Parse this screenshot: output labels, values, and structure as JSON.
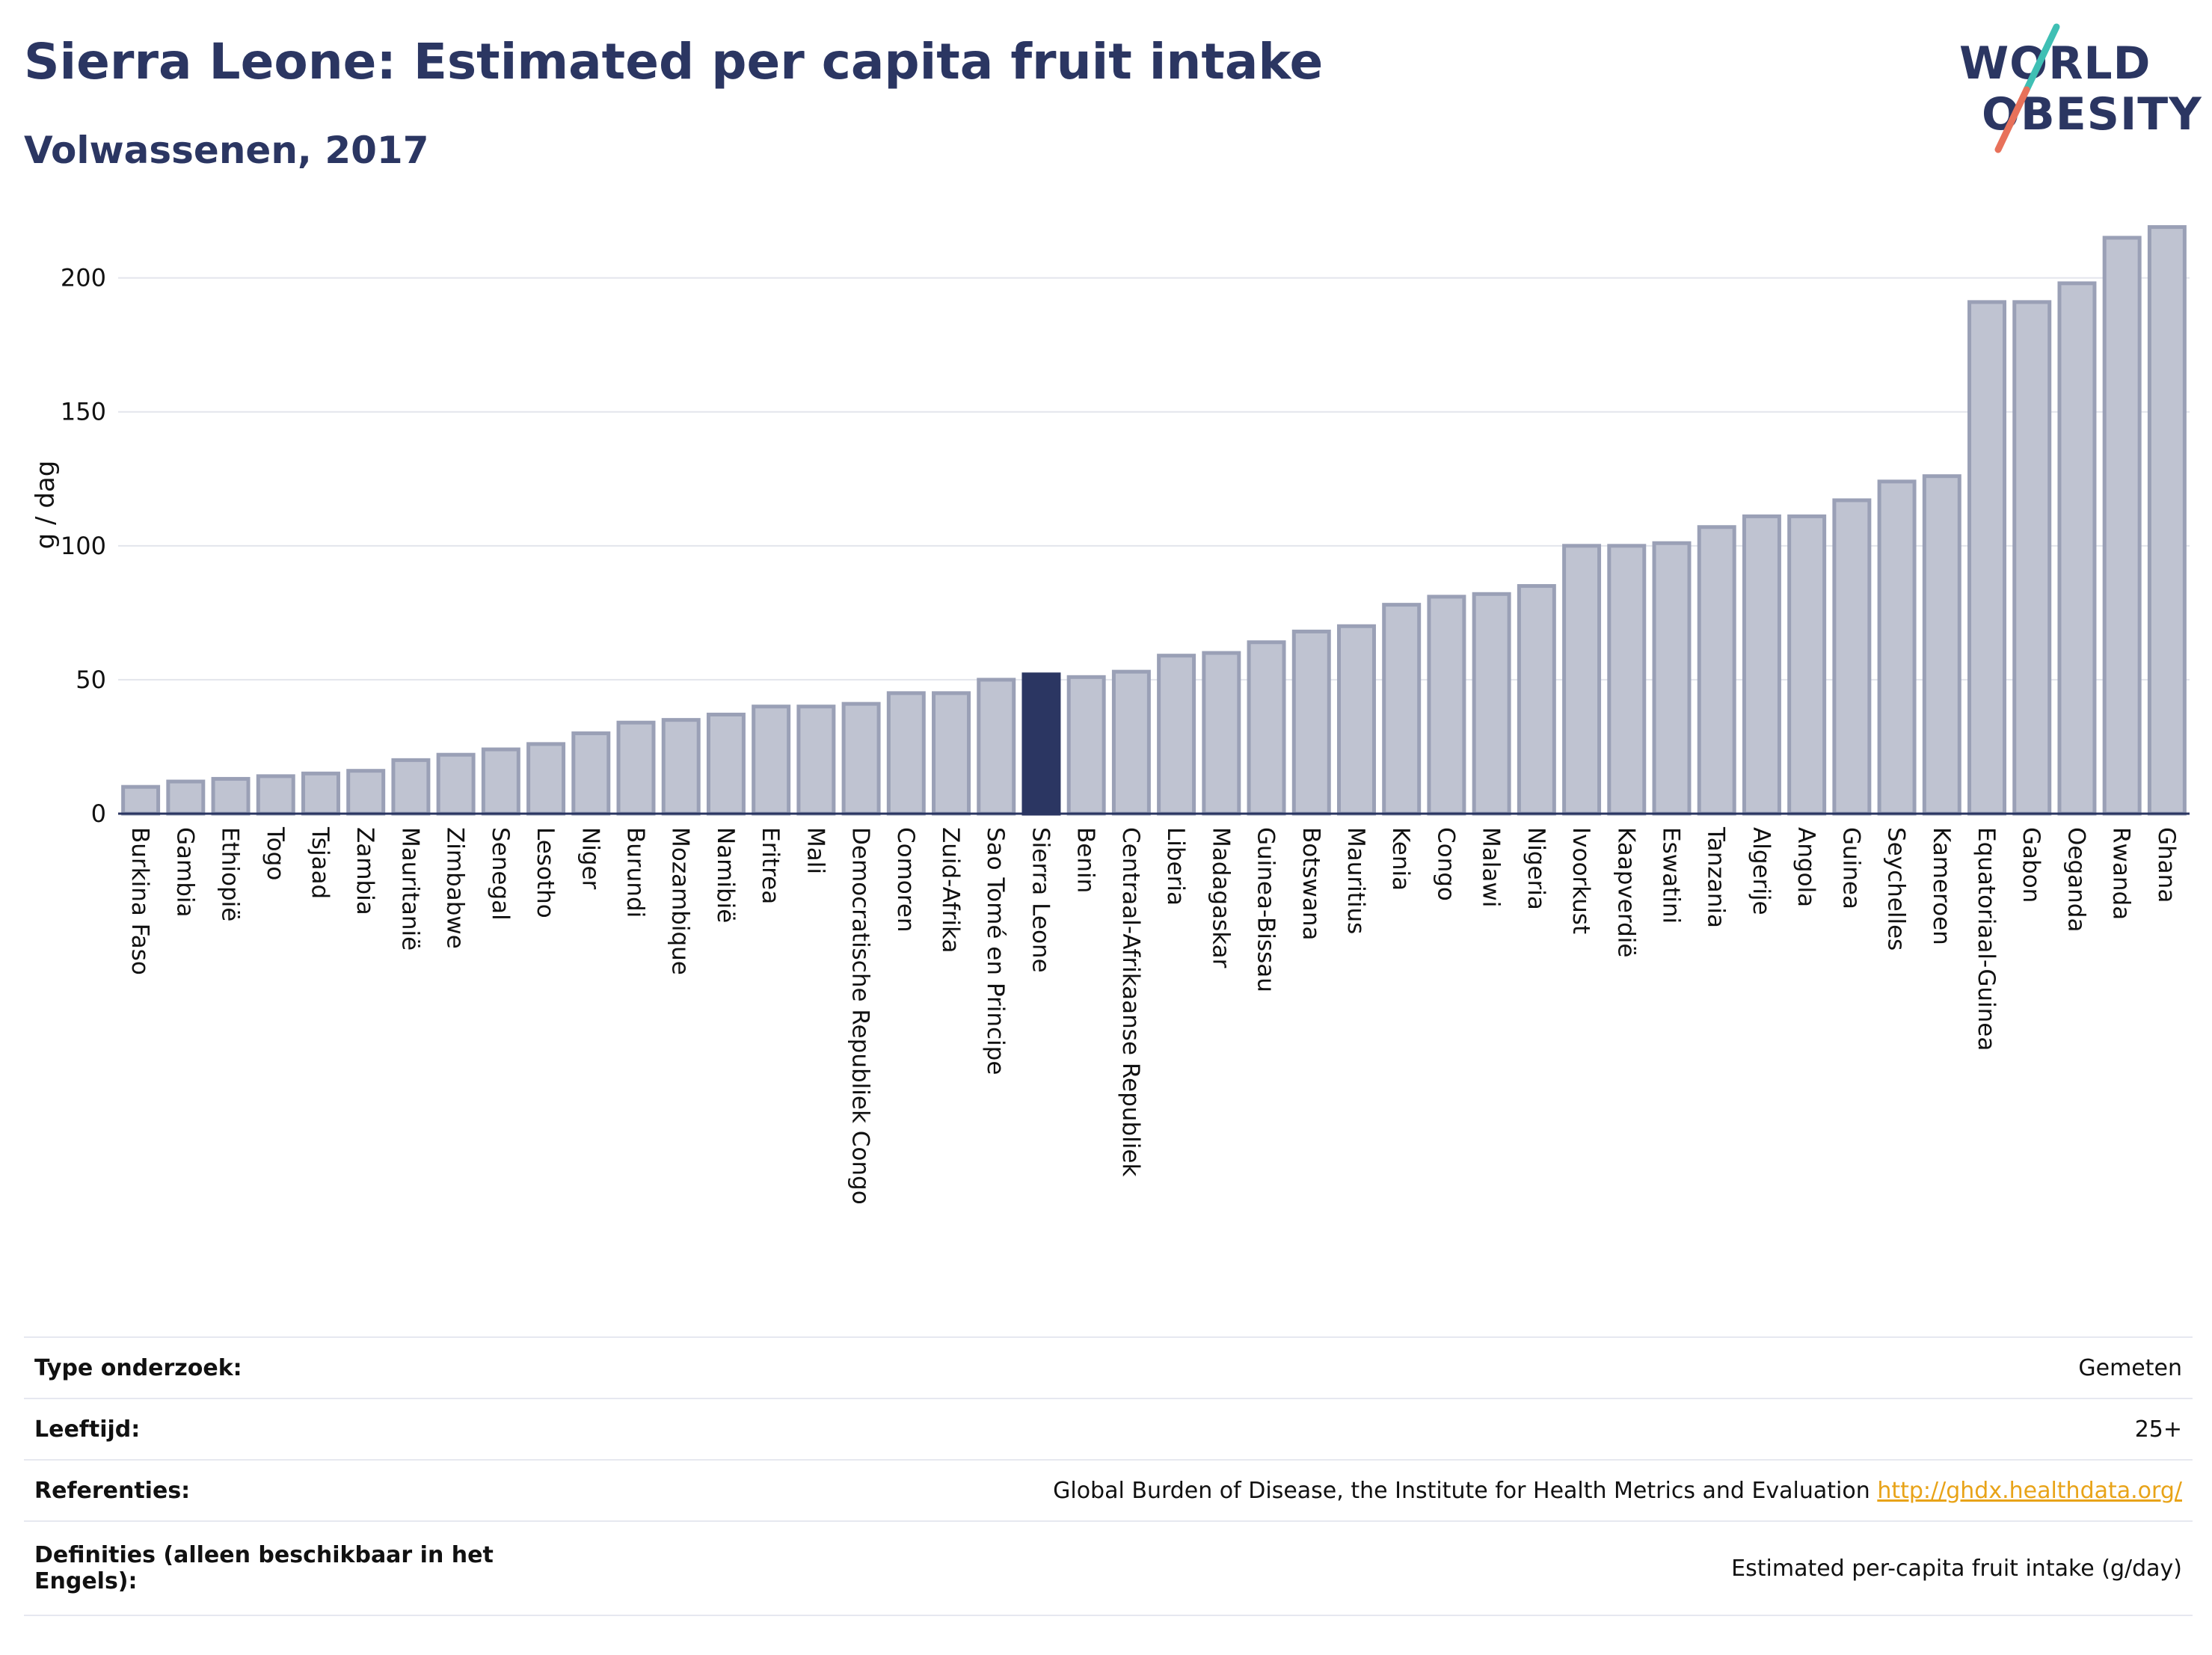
{
  "header": {
    "title": "Sierra Leone: Estimated per capita fruit intake",
    "subtitle": "Volwassenen, 2017"
  },
  "logo": {
    "line1": "WORLD",
    "line2": "OBESITY",
    "colors": {
      "text": "#2b3662",
      "slash_top": "#3fbfb4",
      "slash_bottom": "#e8715a"
    }
  },
  "chart_data": {
    "type": "bar",
    "ylabel": "g / dag",
    "xlabel": "",
    "ylim": [
      0,
      220
    ],
    "yticks": [
      0,
      50,
      100,
      150,
      200
    ],
    "grid": true,
    "highlight": "Sierra Leone",
    "colors": {
      "bar": "#bfc3d1",
      "bar_border": "#9aa0b6",
      "highlight": "#2b3662"
    },
    "categories": [
      "Burkina Faso",
      "Gambia",
      "Ethiopië",
      "Togo",
      "Tsjaad",
      "Zambia",
      "Mauritanië",
      "Zimbabwe",
      "Senegal",
      "Lesotho",
      "Niger",
      "Burundi",
      "Mozambique",
      "Namibië",
      "Eritrea",
      "Mali",
      "Democratische Republiek Congo",
      "Comoren",
      "Zuid-Afrika",
      "Sao Tomé en Principe",
      "Sierra Leone",
      "Benin",
      "Centraal-Afrikaanse Republiek",
      "Liberia",
      "Madagaskar",
      "Guinea-Bissau",
      "Botswana",
      "Mauritius",
      "Kenia",
      "Congo",
      "Malawi",
      "Nigeria",
      "Ivoorkust",
      "Kaapverdië",
      "Eswatini",
      "Tanzania",
      "Algerije",
      "Angola",
      "Guinea",
      "Seychelles",
      "Kameroen",
      "Equatoriaal-Guinea",
      "Gabon",
      "Oeganda",
      "Rwanda",
      "Ghana"
    ],
    "values": [
      10,
      12,
      13,
      14,
      15,
      16,
      20,
      22,
      24,
      26,
      30,
      34,
      35,
      37,
      40,
      40,
      41,
      45,
      45,
      50,
      52,
      51,
      53,
      59,
      60,
      64,
      68,
      70,
      78,
      81,
      82,
      85,
      100,
      100,
      101,
      107,
      111,
      111,
      117,
      124,
      126,
      191,
      191,
      198,
      215,
      219
    ]
  },
  "info": {
    "rows": [
      {
        "label": "Type onderzoek:",
        "value": "Gemeten"
      },
      {
        "label": "Leeftijd:",
        "value": "25+"
      },
      {
        "label": "Referenties:",
        "value": "Global Burden of Disease, the Institute for Health Metrics and Evaluation",
        "link": "http://ghdx.healthdata.org/"
      },
      {
        "label": "Definities (alleen beschikbaar in het Engels):",
        "value": "Estimated per-capita fruit intake (g/day)"
      }
    ]
  }
}
